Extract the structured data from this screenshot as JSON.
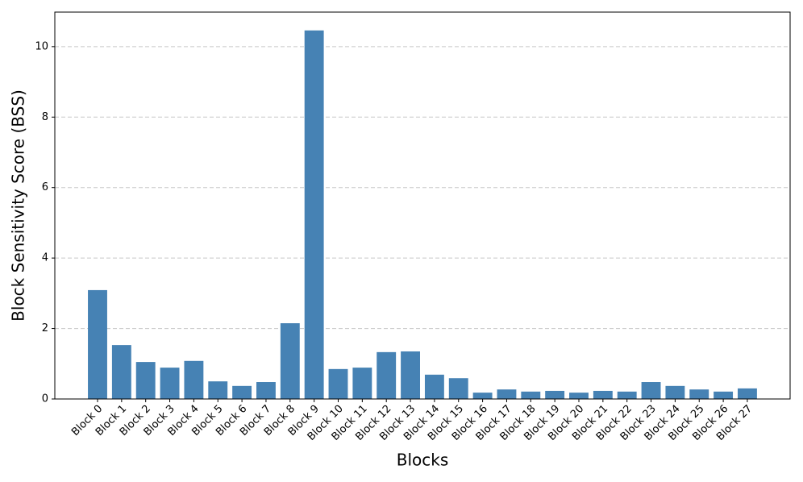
{
  "chart_data": {
    "type": "bar",
    "x_label": "Blocks",
    "y_label": "Block Sensitivity Score (BSS)",
    "categories": [
      "Block 0",
      "Block 1",
      "Block 2",
      "Block 3",
      "Block 4",
      "Block 5",
      "Block 6",
      "Block 7",
      "Block 8",
      "Block 9",
      "Block 10",
      "Block 11",
      "Block 12",
      "Block 13",
      "Block 14",
      "Block 15",
      "Block 16",
      "Block 17",
      "Block 18",
      "Block 19",
      "Block 20",
      "Block 21",
      "Block 22",
      "Block 23",
      "Block 24",
      "Block 25",
      "Block 26",
      "Block 27"
    ],
    "values": [
      3.09,
      1.53,
      1.05,
      0.89,
      1.08,
      0.5,
      0.37,
      0.48,
      2.15,
      10.46,
      0.85,
      0.89,
      1.33,
      1.35,
      0.69,
      0.59,
      0.18,
      0.27,
      0.21,
      0.23,
      0.18,
      0.23,
      0.21,
      0.48,
      0.37,
      0.27,
      0.21,
      0.3
    ],
    "color": "#4682b4",
    "ylim": [
      0,
      10.98
    ],
    "yticks": [
      0,
      2,
      4,
      6,
      8,
      10
    ],
    "grid": true
  }
}
